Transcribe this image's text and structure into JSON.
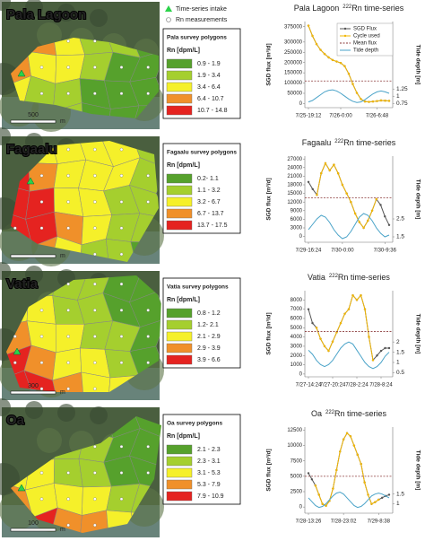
{
  "map_legend": {
    "intake": "Time-series intake",
    "measurements": "Rn measurements"
  },
  "maps": [
    {
      "title": "Pala Lagoon",
      "legend_heading": "Pala survey polygons",
      "legend_unit": "Rn [dpm/L]",
      "scale": "500",
      "scale_unit": "m",
      "legend_items": [
        {
          "label": "0.9 - 1.9",
          "color": "#56a12c"
        },
        {
          "label": "1.9 - 3.4",
          "color": "#a5cf2e"
        },
        {
          "label": "3.4 - 6.4",
          "color": "#f5f02a"
        },
        {
          "label": "6.4 - 10.7",
          "color": "#f0902a"
        },
        {
          "label": "10.7 - 14.8",
          "color": "#e52320"
        }
      ]
    },
    {
      "title": "Fagaalu",
      "legend_heading": "Fagaalu survey polygons",
      "legend_unit": "Rn [dpm/L]",
      "scale_unit": "m",
      "legend_items": [
        {
          "label": "0.2- 1.1",
          "color": "#56a12c"
        },
        {
          "label": "1.1 - 3.2",
          "color": "#a5cf2e"
        },
        {
          "label": "3.2 - 6.7",
          "color": "#f5f02a"
        },
        {
          "label": "6.7 - 13.7",
          "color": "#f0902a"
        },
        {
          "label": "13.7 - 17.5",
          "color": "#e52320"
        }
      ]
    },
    {
      "title": "Vatia",
      "legend_heading": "Vatia survey polygons",
      "legend_unit": "Rn [dpm/L]",
      "scale": "300",
      "scale_unit": "m",
      "legend_items": [
        {
          "label": "0.8 - 1.2",
          "color": "#56a12c"
        },
        {
          "label": "1.2- 2.1",
          "color": "#a5cf2e"
        },
        {
          "label": "2.1 - 2.9",
          "color": "#f5f02a"
        },
        {
          "label": "2.9 - 3.9",
          "color": "#f0902a"
        },
        {
          "label": "3.9 - 6.6",
          "color": "#e52320"
        }
      ]
    },
    {
      "title": "Oa",
      "legend_heading": "Oa survey  polygons",
      "legend_unit": "Rn [dpm/L]",
      "scale": "100",
      "scale_unit": "m",
      "legend_items": [
        {
          "label": "2.1 - 2.3",
          "color": "#56a12c"
        },
        {
          "label": "2.3 - 3.1",
          "color": "#a5cf2e"
        },
        {
          "label": "3.1 - 5.3",
          "color": "#f5f02a"
        },
        {
          "label": "5.3 - 7.9",
          "color": "#f0902a"
        },
        {
          "label": "7.9 - 10.9",
          "color": "#e52320"
        }
      ]
    }
  ],
  "chart_data": [
    {
      "type": "line",
      "title": "Pala Lagoon",
      "title_sup": "222",
      "title_tail": "Rn time-series",
      "ylabel": "SGD flux [m³/d]",
      "y2label": "Tide depth [m]",
      "legend": "upper right",
      "categories": [
        "7/25-19:12",
        null,
        null,
        null,
        null,
        null,
        null,
        null,
        "7/26-0:00",
        null,
        null,
        null,
        null,
        null,
        null,
        null,
        null,
        "7/26-6:48",
        null,
        null,
        null
      ],
      "ylim": [
        -20000,
        400000
      ],
      "yticks": [
        0,
        50000,
        100000,
        150000,
        200000,
        250000,
        300000,
        375000
      ],
      "y2lim": [
        0.6,
        3.6
      ],
      "y2ticks": [
        0.75,
        1,
        1.25
      ],
      "series": [
        {
          "name": "SGD Flux",
          "color": "#555555",
          "marker": "dot",
          "values": [
            380000,
            330000,
            290000,
            262000,
            242000,
            225000,
            212000,
            205000,
            198000,
            182000,
            145000,
            95000,
            52000,
            22000,
            10000,
            8000,
            10000,
            12000,
            15000,
            14000,
            13000
          ]
        },
        {
          "name": "Cycle used",
          "color": "#f2b705",
          "marker": "dot",
          "values": [
            380000,
            330000,
            290000,
            262000,
            242000,
            225000,
            212000,
            205000,
            198000,
            182000,
            145000,
            95000,
            52000,
            22000,
            10000,
            8000,
            10000,
            12000,
            15000,
            14000,
            13000
          ]
        },
        {
          "name": "Mean flux",
          "color": "#8b3a3a",
          "dashed": true,
          "value": 110000
        },
        {
          "name": "Tide depth",
          "color": "#4aa3c8",
          "axis": "y2",
          "values": [
            0.8,
            0.85,
            0.95,
            1.05,
            1.15,
            1.2,
            1.22,
            1.18,
            1.1,
            1.0,
            0.9,
            0.82,
            0.78,
            0.8,
            0.88,
            0.98,
            1.08,
            1.15,
            1.18,
            1.15,
            1.1
          ]
        }
      ]
    },
    {
      "type": "line",
      "title": "Fagaalu",
      "title_sup": "222",
      "title_tail": "Rn time-series",
      "ylabel": "SGD flux [m³/d]",
      "y2label": "Tide depth [m]",
      "categories": [
        "7/29-16:24",
        null,
        null,
        null,
        null,
        null,
        null,
        null,
        "7/30-0:00",
        null,
        null,
        null,
        null,
        null,
        null,
        null,
        null,
        null,
        "7/30-9:36",
        null
      ],
      "ylim": [
        -2000,
        28000
      ],
      "yticks": [
        0,
        3000,
        6000,
        9000,
        12000,
        15000,
        18000,
        21000,
        24000,
        27000
      ],
      "y2lim": [
        1.2,
        6
      ],
      "y2ticks": [
        1.5,
        2.5
      ],
      "series": [
        {
          "name": "SGD Flux",
          "color": "#555555",
          "marker": "dot",
          "values": [
            19000,
            16500,
            14500,
            22000,
            25500,
            23000,
            25000,
            22000,
            18000,
            15000,
            12000,
            8000,
            5000,
            3000,
            5500,
            9000,
            13000,
            11000,
            7000,
            4000
          ]
        },
        {
          "name": "Cycle used",
          "color": "#f2b705",
          "marker": "dot",
          "values": [
            null,
            null,
            14500,
            22000,
            25500,
            23000,
            25000,
            22000,
            18000,
            15000,
            12000,
            8000,
            5000,
            3000,
            5500,
            9000,
            13000,
            null,
            null,
            null
          ]
        },
        {
          "name": "Mean flux",
          "color": "#8b3a3a",
          "dashed": true,
          "value": 13500
        },
        {
          "name": "Tide depth",
          "color": "#4aa3c8",
          "axis": "y2",
          "values": [
            1.9,
            2.2,
            2.5,
            2.7,
            2.6,
            2.3,
            1.9,
            1.6,
            1.4,
            1.5,
            1.8,
            2.2,
            2.6,
            2.8,
            2.7,
            2.4,
            2.0,
            1.7,
            1.5,
            1.6
          ]
        }
      ]
    },
    {
      "type": "line",
      "title": "Vatia",
      "title_sup": "222",
      "title_tail": "Rn time-series",
      "ylabel": "SGD flux [m³/d]",
      "y2label": "Tide depth [m]",
      "categories": [
        "7/27-14:24",
        null,
        null,
        null,
        null,
        null,
        "7/27-20:24",
        null,
        null,
        null,
        null,
        null,
        "7/28-2:24",
        null,
        null,
        null,
        null,
        null,
        "7/28-8:24",
        null,
        null
      ],
      "ylim": [
        -300,
        9000
      ],
      "yticks": [
        0,
        1000,
        2000,
        3000,
        4000,
        5000,
        6000,
        7000,
        8000
      ],
      "y2lim": [
        0.3,
        4.5
      ],
      "y2ticks": [
        0.5,
        1,
        1.5,
        2
      ],
      "series": [
        {
          "name": "SGD Flux",
          "color": "#555555",
          "marker": "dot",
          "values": [
            7000,
            5500,
            5000,
            3800,
            3000,
            2500,
            3500,
            4500,
            5500,
            6500,
            7000,
            8500,
            8000,
            8500,
            7000,
            4000,
            1500,
            2000,
            2500,
            2800,
            2800
          ]
        },
        {
          "name": "Cycle used",
          "color": "#f2b705",
          "marker": "dot",
          "values": [
            null,
            null,
            5000,
            3800,
            3000,
            2500,
            3500,
            4500,
            5500,
            6500,
            7000,
            8500,
            8000,
            8500,
            7000,
            4000,
            1500,
            null,
            null,
            null,
            null
          ]
        },
        {
          "name": "Mean flux",
          "color": "#8b3a3a",
          "dashed": true,
          "value": 4600
        },
        {
          "name": "Tide depth",
          "color": "#4aa3c8",
          "axis": "y2",
          "values": [
            1.6,
            1.4,
            1.1,
            0.9,
            0.8,
            0.9,
            1.1,
            1.4,
            1.7,
            1.9,
            2.0,
            1.9,
            1.6,
            1.3,
            1.0,
            0.8,
            0.7,
            0.8,
            1.0,
            1.3,
            1.5
          ]
        }
      ]
    },
    {
      "type": "line",
      "title": "Oa",
      "title_sup": "222",
      "title_tail": "Rn time-series",
      "ylabel": "SGD flux [m³/d]",
      "y2label": "Tide depth [m]",
      "categories": [
        "7/28-13:26",
        null,
        null,
        null,
        null,
        null,
        null,
        null,
        null,
        null,
        "7/28-23:02",
        null,
        null,
        null,
        null,
        null,
        null,
        null,
        null,
        null,
        "7/29-8:38",
        null,
        null,
        null
      ],
      "ylim": [
        -1000,
        13000
      ],
      "yticks": [
        0,
        2500,
        5000,
        7500,
        10000,
        12500
      ],
      "y2lim": [
        0.5,
        5
      ],
      "y2ticks": [
        1,
        1.5
      ],
      "series": [
        {
          "name": "SGD Flux",
          "color": "#555555",
          "marker": "dot",
          "values": [
            5500,
            4500,
            3500,
            2000,
            500,
            200,
            1000,
            3000,
            6000,
            9000,
            11000,
            12000,
            11500,
            10000,
            8500,
            7000,
            4000,
            2000,
            500,
            800,
            1200,
            1500,
            1800,
            2000
          ]
        },
        {
          "name": "Cycle used",
          "color": "#f2b705",
          "marker": "dot",
          "values": [
            null,
            null,
            3500,
            2000,
            500,
            200,
            1000,
            3000,
            6000,
            9000,
            11000,
            12000,
            11500,
            10000,
            8500,
            7000,
            4000,
            2000,
            500,
            800,
            1200,
            null,
            null,
            null
          ]
        },
        {
          "name": "Mean flux",
          "color": "#8b3a3a",
          "dashed": true,
          "value": 5000
        },
        {
          "name": "Tide depth",
          "color": "#4aa3c8",
          "axis": "y2",
          "values": [
            1.3,
            1.1,
            0.9,
            0.8,
            0.85,
            1.0,
            1.2,
            1.4,
            1.55,
            1.6,
            1.5,
            1.3,
            1.1,
            0.9,
            0.8,
            0.85,
            1.0,
            1.2,
            1.4,
            1.5,
            1.55,
            1.5,
            1.4,
            1.3
          ]
        }
      ]
    }
  ]
}
